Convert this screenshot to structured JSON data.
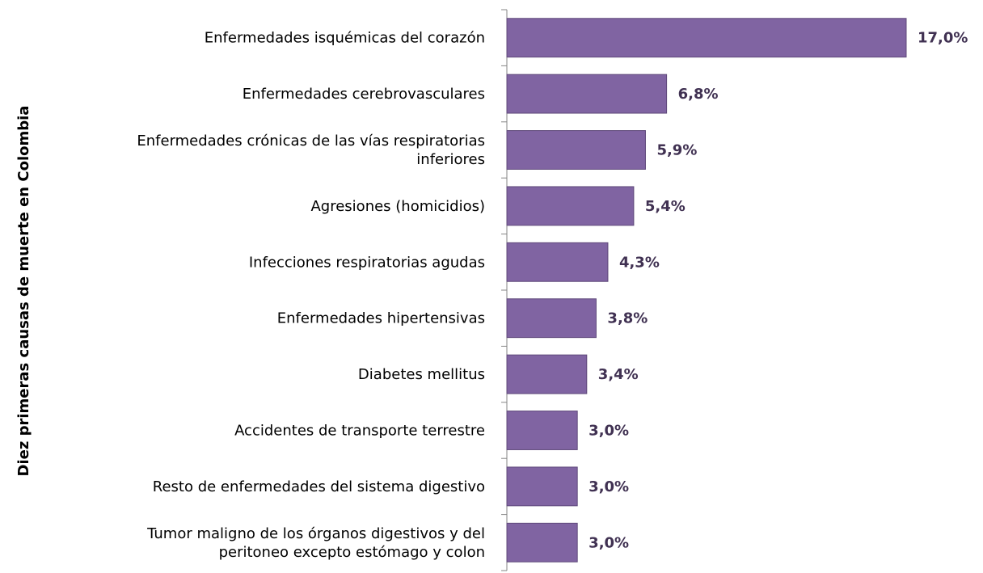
{
  "chart_data": {
    "type": "bar",
    "orientation": "horizontal",
    "y_label": "Diez primeras causas de muerte en Colombia",
    "categories": [
      "Enfermedades isquémicas del corazón",
      "Enfermedades cerebrovasculares",
      "Enfermedades crónicas de las vías respiratorias inferiores",
      "Agresiones (homicidios)",
      "Infecciones respiratorias agudas",
      "Enfermedades hipertensivas",
      "Diabetes mellitus",
      "Accidentes de transporte terrestre",
      "Resto de enfermedades del sistema digestivo",
      "Tumor maligno de los órganos digestivos y del peritoneo excepto estómago y colon"
    ],
    "values": [
      17.0,
      6.8,
      5.9,
      5.4,
      4.3,
      3.8,
      3.4,
      3.0,
      3.0,
      3.0
    ],
    "value_labels": [
      "17,0%",
      "6,8%",
      "5,9%",
      "5,4%",
      "4,3%",
      "3,8%",
      "3,4%",
      "3,0%",
      "3,0%",
      "3,0%"
    ],
    "color": "#8064a2"
  }
}
